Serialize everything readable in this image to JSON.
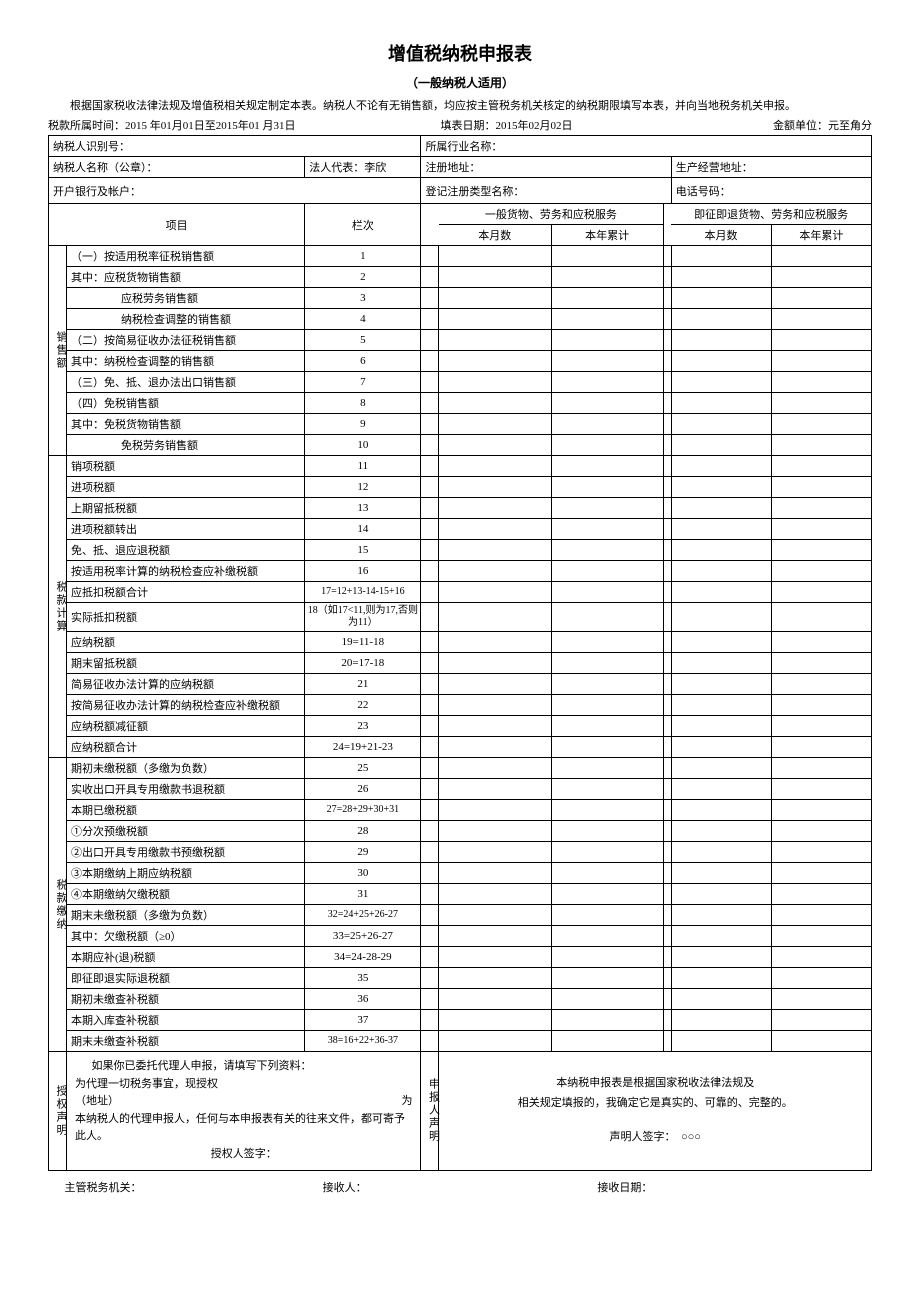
{
  "title": "增值税纳税申报表",
  "subtitle": "（一般纳税人适用）",
  "intro": "根据国家税收法律法规及增值税相关规定制定本表。纳税人不论有无销售额，均应按主管税务机关核定的纳税期限填写本表，并向当地税务机关申报。",
  "meta": {
    "period_label": "税款所属时间：",
    "period_value": "2015 年01月01日至2015年01 月31日",
    "fill_date_label": "填表日期：",
    "fill_date_value": "2015年02月02日",
    "unit_label": "金额单位：元至角分"
  },
  "header": {
    "taxpayer_id_label": "纳税人识别号：",
    "industry_label": "所属行业名称：",
    "taxpayer_name_label": "纳税人名称（公章）：",
    "legal_rep_label": "法人代表：",
    "legal_rep_value": "李欣",
    "reg_addr_label": "注册地址：",
    "biz_addr_label": "生产经营地址：",
    "bank_label": "开户银行及帐户：",
    "reg_type_label": "登记注册类型名称：",
    "phone_label": "电话号码："
  },
  "colheads": {
    "item": "项目",
    "col_no": "栏次",
    "group1": "一般货物、劳务和应税服务",
    "group2": "即征即退货物、劳务和应税服务",
    "month": "本月数",
    "year": "本年累计"
  },
  "sections": {
    "sales": "销售额",
    "taxcalc": "税款计算",
    "taxpay": "税款缴纳",
    "auth": "授权声明",
    "apply": "申报人声明"
  },
  "rows_sales": [
    {
      "label": "（一）按适用税率征税销售额",
      "col": "1",
      "indent": 0
    },
    {
      "label": "其中：应税货物销售额",
      "col": "2",
      "indent": 0
    },
    {
      "label": "应税劳务销售额",
      "col": "3",
      "indent": 2
    },
    {
      "label": "纳税检查调整的销售额",
      "col": "4",
      "indent": 2
    },
    {
      "label": "（二）按简易征收办法征税销售额",
      "col": "5",
      "indent": 0
    },
    {
      "label": "其中：纳税检查调整的销售额",
      "col": "6",
      "indent": 0
    },
    {
      "label": "（三）免、抵、退办法出口销售额",
      "col": "7",
      "indent": 0
    },
    {
      "label": "（四）免税销售额",
      "col": "8",
      "indent": 0
    },
    {
      "label": "其中：免税货物销售额",
      "col": "9",
      "indent": 0
    },
    {
      "label": "免税劳务销售额",
      "col": "10",
      "indent": 2
    }
  ],
  "rows_taxcalc": [
    {
      "label": "销项税额",
      "col": "11"
    },
    {
      "label": "进项税额",
      "col": "12"
    },
    {
      "label": "上期留抵税额",
      "col": "13"
    },
    {
      "label": "进项税额转出",
      "col": "14"
    },
    {
      "label": "免、抵、退应退税额",
      "col": "15"
    },
    {
      "label": "按适用税率计算的纳税检查应补缴税额",
      "col": "16"
    },
    {
      "label": "应抵扣税额合计",
      "col": "17=12+13-14-15+16"
    },
    {
      "label": "实际抵扣税额",
      "col": "18（如17<11,则为17,否则为11）"
    },
    {
      "label": "应纳税额",
      "col": "19=11-18"
    },
    {
      "label": "期末留抵税额",
      "col": "20=17-18"
    },
    {
      "label": "简易征收办法计算的应纳税额",
      "col": "21"
    },
    {
      "label": "按简易征收办法计算的纳税检查应补缴税额",
      "col": "22"
    },
    {
      "label": "应纳税额减征额",
      "col": "23"
    },
    {
      "label": "应纳税额合计",
      "col": "24=19+21-23"
    }
  ],
  "rows_taxpay": [
    {
      "label": "期初未缴税额（多缴为负数）",
      "col": "25"
    },
    {
      "label": "实收出口开具专用缴款书退税额",
      "col": "26"
    },
    {
      "label": "本期已缴税额",
      "col": "27=28+29+30+31"
    },
    {
      "label": "①分次预缴税额",
      "col": "28"
    },
    {
      "label": "②出口开具专用缴款书预缴税额",
      "col": "29"
    },
    {
      "label": "③本期缴纳上期应纳税额",
      "col": "30"
    },
    {
      "label": "④本期缴纳欠缴税额",
      "col": "31"
    },
    {
      "label": "期末未缴税额（多缴为负数）",
      "col": "32=24+25+26-27"
    },
    {
      "label": "其中：欠缴税额（≥0）",
      "col": "33=25+26-27"
    },
    {
      "label": "本期应补(退)税额",
      "col": "34=24-28-29"
    },
    {
      "label": "即征即退实际退税额",
      "col": "35"
    },
    {
      "label": "期初未缴查补税额",
      "col": "36"
    },
    {
      "label": "本期入库查补税额",
      "col": "37"
    },
    {
      "label": "期末未缴查补税额",
      "col": "38=16+22+36-37"
    }
  ],
  "auth_block": {
    "line1": "如果你已委托代理人申报，请填写下列资料：",
    "line2": "为代理一切税务事宜，现授权",
    "line3_addr": "（地址）",
    "line3_suffix": "为",
    "line4": "本纳税人的代理申报人，任何与本申报表有关的往来文件，都可寄予此人。",
    "sign_label": "授权人签字："
  },
  "decl_block": {
    "line1": "本纳税申报表是根据国家税收法律法规及",
    "line2": "相关规定填报的，我确定它是真实的、可靠的、完整的。",
    "sign_label": "声明人签字：",
    "sign_value": "○○○"
  },
  "footer": {
    "agency": "主管税务机关：",
    "receiver": "接收人：",
    "recv_date": "接收日期："
  }
}
